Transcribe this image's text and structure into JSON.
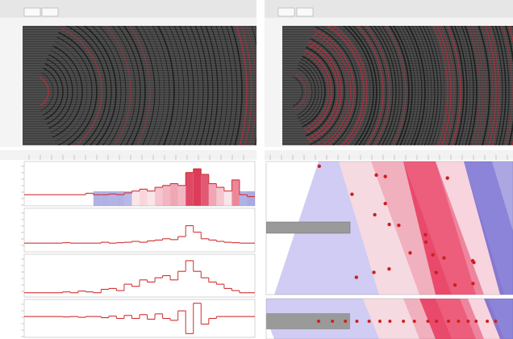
{
  "traces": [
    {
      "values": [
        0.3,
        0.3,
        0.3,
        0.3,
        0.3,
        0.3,
        0.3,
        0.3,
        0.34,
        0.3,
        0.3,
        0.32,
        0.3,
        0.35,
        0.4,
        0.45,
        0.4,
        0.5,
        0.55,
        0.6,
        0.55,
        0.9,
        1.0,
        0.85,
        0.6,
        0.5,
        0.4,
        0.7,
        0.3,
        0.25
      ],
      "ylim": [
        0,
        1.2
      ],
      "color": "#d03030"
    },
    {
      "values": [
        0.2,
        0.2,
        0.2,
        0.2,
        0.2,
        0.21,
        0.2,
        0.2,
        0.2,
        0.2,
        0.22,
        0.2,
        0.21,
        0.22,
        0.24,
        0.22,
        0.25,
        0.27,
        0.3,
        0.28,
        0.35,
        0.6,
        0.45,
        0.3,
        0.27,
        0.24,
        0.22,
        0.21,
        0.2,
        0.2
      ],
      "ylim": [
        0,
        1
      ],
      "color": "#d03030"
    },
    {
      "values": [
        0.1,
        0.1,
        0.1,
        0.1,
        0.1,
        0.12,
        0.1,
        0.14,
        0.12,
        0.1,
        0.18,
        0.2,
        0.15,
        0.3,
        0.25,
        0.4,
        0.35,
        0.45,
        0.5,
        0.4,
        0.6,
        0.85,
        0.6,
        0.45,
        0.35,
        0.3,
        0.2,
        0.15,
        0.1,
        0.1
      ],
      "ylim": [
        0,
        1
      ],
      "color": "#d03030"
    },
    {
      "values": [
        0.55,
        0.55,
        0.55,
        0.55,
        0.55,
        0.54,
        0.55,
        0.53,
        0.55,
        0.55,
        0.52,
        0.56,
        0.5,
        0.58,
        0.5,
        0.6,
        0.48,
        0.62,
        0.5,
        0.45,
        0.7,
        0.1,
        0.9,
        0.35,
        0.5,
        0.55,
        0.55,
        0.55,
        0.55,
        0.55
      ],
      "ylim": [
        0,
        1
      ],
      "color": "#d03030"
    }
  ]
}
